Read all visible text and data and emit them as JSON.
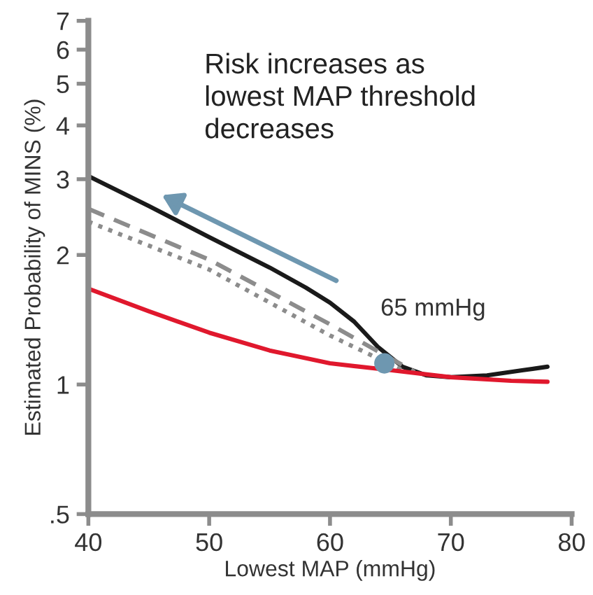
{
  "chart_data": {
    "type": "line",
    "xlabel": "Lowest MAP (mmHg)",
    "ylabel": "Estimated Probability of MINS (%)",
    "log": "y",
    "xlim": [
      40,
      80
    ],
    "xticks": [
      40,
      50,
      60,
      70,
      80
    ],
    "ylim": [
      0.5,
      7
    ],
    "yticks": [
      {
        "value": 0.5,
        "label": ".5"
      },
      1,
      2,
      3,
      4,
      5,
      6,
      7
    ],
    "grid": false,
    "series": [
      {
        "color": "#1a1a1a",
        "line_style": "solid",
        "x": [
          40,
          45,
          50,
          55,
          58,
          60,
          62,
          64,
          66,
          68,
          70,
          73,
          76,
          78
        ],
        "values": [
          3.05,
          2.6,
          2.2,
          1.87,
          1.68,
          1.55,
          1.4,
          1.22,
          1.1,
          1.05,
          1.04,
          1.05,
          1.08,
          1.1
        ]
      },
      {
        "color": "#8c8c8c",
        "line_style": "dashed",
        "x": [
          40,
          50,
          60,
          67
        ],
        "values": [
          2.56,
          1.95,
          1.38,
          1.07
        ]
      },
      {
        "color": "#8c8c8c",
        "line_style": "dotted",
        "x": [
          40,
          50,
          60,
          66
        ],
        "values": [
          2.39,
          1.85,
          1.3,
          1.08
        ]
      },
      {
        "color": "#e0182d",
        "line_style": "solid",
        "x": [
          40,
          45,
          50,
          55,
          60,
          65,
          70,
          75,
          78
        ],
        "values": [
          1.67,
          1.48,
          1.32,
          1.2,
          1.12,
          1.08,
          1.04,
          1.02,
          1.015
        ]
      },
      {
        "type": "scatter",
        "marker": "circle",
        "color": "#6e97b0",
        "x": [
          64.5
        ],
        "values": [
          1.12
        ]
      }
    ],
    "annotations": [
      "Risk increases as\nlowest MAP threshold\ndecreases",
      {
        "text": "65 mmHg",
        "x": 64.5,
        "y": 1.12
      }
    ]
  }
}
